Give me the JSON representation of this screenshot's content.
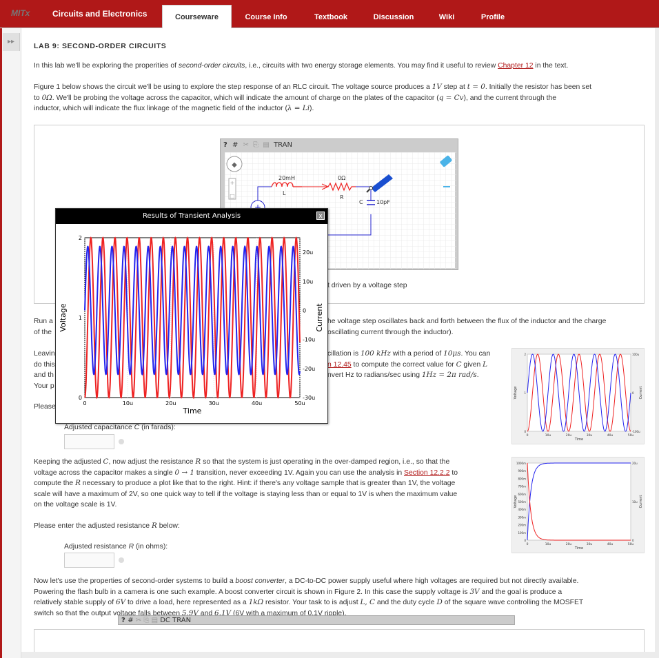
{
  "header": {
    "logo": "MITx",
    "course_title": "Circuits and Electronics",
    "tabs": [
      "Courseware",
      "Course Info",
      "Textbook",
      "Discussion",
      "Wiki",
      "Profile"
    ],
    "active_tab": "Courseware"
  },
  "sidebar": {
    "toggle_icon": "double-chevron-right-icon",
    "toggle_glyph": "▸▸"
  },
  "lab": {
    "title": "LAB 9: SECOND-ORDER CIRCUITS",
    "intro_a": "In this lab we'll be exploring the properities of ",
    "intro_em": "second-order circuits",
    "intro_b": ", i.e., circuits with two energy storage elements. You may find it useful to review ",
    "intro_link": "Chapter 12",
    "intro_c": " in the text.",
    "fig1_p1": "Figure 1 below shows the circuit we'll be using to explore the step response of an RLC circuit. The voltage source produces a ",
    "fig1_1V": "1V",
    "fig1_p2": " step at ",
    "fig1_t0": "t = 0",
    "fig1_p3": ". Initially the resistor has been set",
    "fig1_l2a": "to ",
    "fig1_0ohm": "0Ω",
    "fig1_l2b": ". We'll be probing the voltage across the capacitor, which will indicate the amount of charge on the plates of the capacitor (",
    "fig1_qcv": "q = Cv",
    "fig1_l2c": "), and the current through the",
    "fig1_l3a": "inductor, which will indicate the flux linkage of the magnetic field of the inductor (",
    "fig1_lambda": "λ = Li",
    "fig1_l3b": ").",
    "fig1_caption": "t driven by a voltage step",
    "run_a": "Run a",
    "run_b": "of the",
    "run_r1": "he voltage step oscillates back and forth between the flux of the inductor and the charge",
    "run_r2": "oscillating current through the inductor).",
    "leave_l": [
      "Leavin",
      "do this",
      "and th",
      "Your p"
    ],
    "leave_r1a": "cillation is ",
    "leave_r1m": "100 kHz",
    "leave_r1b": " with a period of ",
    "leave_r1m2": "10μs",
    "leave_r1c": ". You can",
    "leave_r2link": "n 12.45",
    "leave_r2a": " to compute the correct value for ",
    "leave_r2m": "C",
    "leave_r2b": " given ",
    "leave_r2m2": "L",
    "leave_r3a": "nvert Hz to radians/sec using ",
    "leave_r3m": "1Hz = 2π rad/s",
    "leave_r3b": ".",
    "please": "Please",
    "cap_label_a": "Adjusted capacitance ",
    "cap_label_m": "C",
    "cap_label_b": " (in farads):",
    "keep_1a": "Keeping the adjusted ",
    "keep_1m": "C",
    "keep_1b": ", now adjust the resistance ",
    "keep_1m2": "R",
    "keep_1c": " so that the system is just operating in the over-damped region, i.e., so that the",
    "keep_2a": "voltage across the capacitor makes a single ",
    "keep_2m": "0 → 1",
    "keep_2b": " transition, never exceeding 1V. Again you can use the analysis in ",
    "keep_2link": "Section 12.2.2",
    "keep_2c": " to",
    "keep_3a": "compute the ",
    "keep_3m": "R",
    "keep_3b": " necessary to produce a plot like that to the right. Hint: if there's any voltage sample that is greater than 1V, the voltage",
    "keep_4": "scale will have a maximum of 2V, so one quick way to tell if the voltage is staying less than or equal to 1V is when the maximum value",
    "keep_5": "on the voltage scale is 1V.",
    "enter_r_a": "Please enter the adjusted resistance ",
    "enter_r_m": "R",
    "enter_r_b": " below:",
    "res_label_a": "Adjusted resistance ",
    "res_label_m": "R",
    "res_label_b": " (in ohms):",
    "boost_1a": "Now let's use the properties of second-order systems to build a ",
    "boost_1em": "boost converter",
    "boost_1b": ", a DC-to-DC power supply useful where high voltages are required but not directly available.",
    "boost_2a": "Powering the flash bulb in a camera is one such example. A boost converter circuit is shown in Figure 2. In this case the supply voltage is ",
    "boost_2m": "3V",
    "boost_2b": " and the goal is produce a",
    "boost_3a": "relatively stable supply of ",
    "boost_3m": "6V",
    "boost_3b": " to drive a load, here represented as a ",
    "boost_3m2": "1kΩ",
    "boost_3c": " resistor. Your task to is adjust ",
    "boost_3m3": "L, C",
    "boost_3d": " and the duty cycle ",
    "boost_3m4": "D",
    "boost_3e": " of the square wave controlling the MOSFET",
    "boost_4a": "switch so that the output voltage falls between ",
    "boost_4m": "5.9V",
    "boost_4b": " and ",
    "boost_4m2": "6.1V",
    "boost_4c": " (6V with a maximum of 0.1V ripple)."
  },
  "schematic": {
    "toolbar_help": "?",
    "toolbar_label": "TRAN",
    "inductor_value": "20mH",
    "inductor_name": "L",
    "resistor_value": "0Ω",
    "resistor_name": "R",
    "cap_name": "C",
    "cap_value": "10pF",
    "plus": "+",
    "minus": "−"
  },
  "fig2": {
    "toolbar_label": "DC TRAN"
  },
  "popup": {
    "title": "Results of Transient Analysis",
    "close": "x",
    "xlabel": "Time",
    "ylabel_left": "Voltage",
    "ylabel_right": "Current",
    "x_ticks": [
      "0",
      "10u",
      "20u",
      "30u",
      "40u",
      "50u"
    ],
    "y_left_ticks": [
      "0",
      "1",
      "2"
    ],
    "y_right_ticks": [
      "-30u",
      "-20u",
      "-10u",
      "0",
      "10u",
      "20u"
    ]
  },
  "chart_data": [
    {
      "type": "line",
      "title": "Results of Transient Analysis",
      "xlabel": "Time",
      "ylabel": "Voltage",
      "y2label": "Current",
      "xlim": [
        0,
        5e-05
      ],
      "ylim": [
        0,
        2
      ],
      "y2lim": [
        -3e-05,
        2.5e-05
      ],
      "series": [
        {
          "axis": "left",
          "color": "#ee2222",
          "kind": "sin",
          "offset": 1,
          "amp": 1,
          "freq": 356000
        },
        {
          "axis": "right",
          "color": "#2222ee",
          "kind": "sin",
          "offset": 0,
          "amp": 2.2e-05,
          "freq": 356000
        }
      ]
    },
    {
      "type": "line",
      "xlabel": "Time",
      "ylabel": "Voltage",
      "y2label": "Current",
      "x_ticks": [
        "0",
        "10u",
        "20u",
        "30u",
        "40u",
        "50u"
      ],
      "y_left_ticks": [
        "0",
        "1",
        "2"
      ],
      "y_right_ticks": [
        "-100u",
        "0",
        "100u"
      ],
      "series": [
        {
          "color": "#ee2222",
          "kind": "sin",
          "offset": 1,
          "amp": 1,
          "freq": 100000
        },
        {
          "color": "#2222ee",
          "kind": "sin",
          "offset": 1,
          "amp": 1,
          "freq": 100000,
          "phase": 1.57
        }
      ]
    },
    {
      "type": "line",
      "xlabel": "Time",
      "ylabel": "Voltage",
      "y2label": "Current",
      "x_ticks": [
        "0",
        "10u",
        "20u",
        "30u",
        "40u",
        "50u"
      ],
      "y_left_ticks": [
        "0",
        "100m",
        "200m",
        "300m",
        "400m",
        "500m",
        "600m",
        "700m",
        "800m",
        "900m",
        "1000m"
      ],
      "y_right_ticks": [
        "0",
        "10u",
        "20u"
      ],
      "series": [
        {
          "color": "#2222ee",
          "kind": "rise"
        },
        {
          "color": "#ee2222",
          "kind": "fall"
        }
      ]
    }
  ]
}
